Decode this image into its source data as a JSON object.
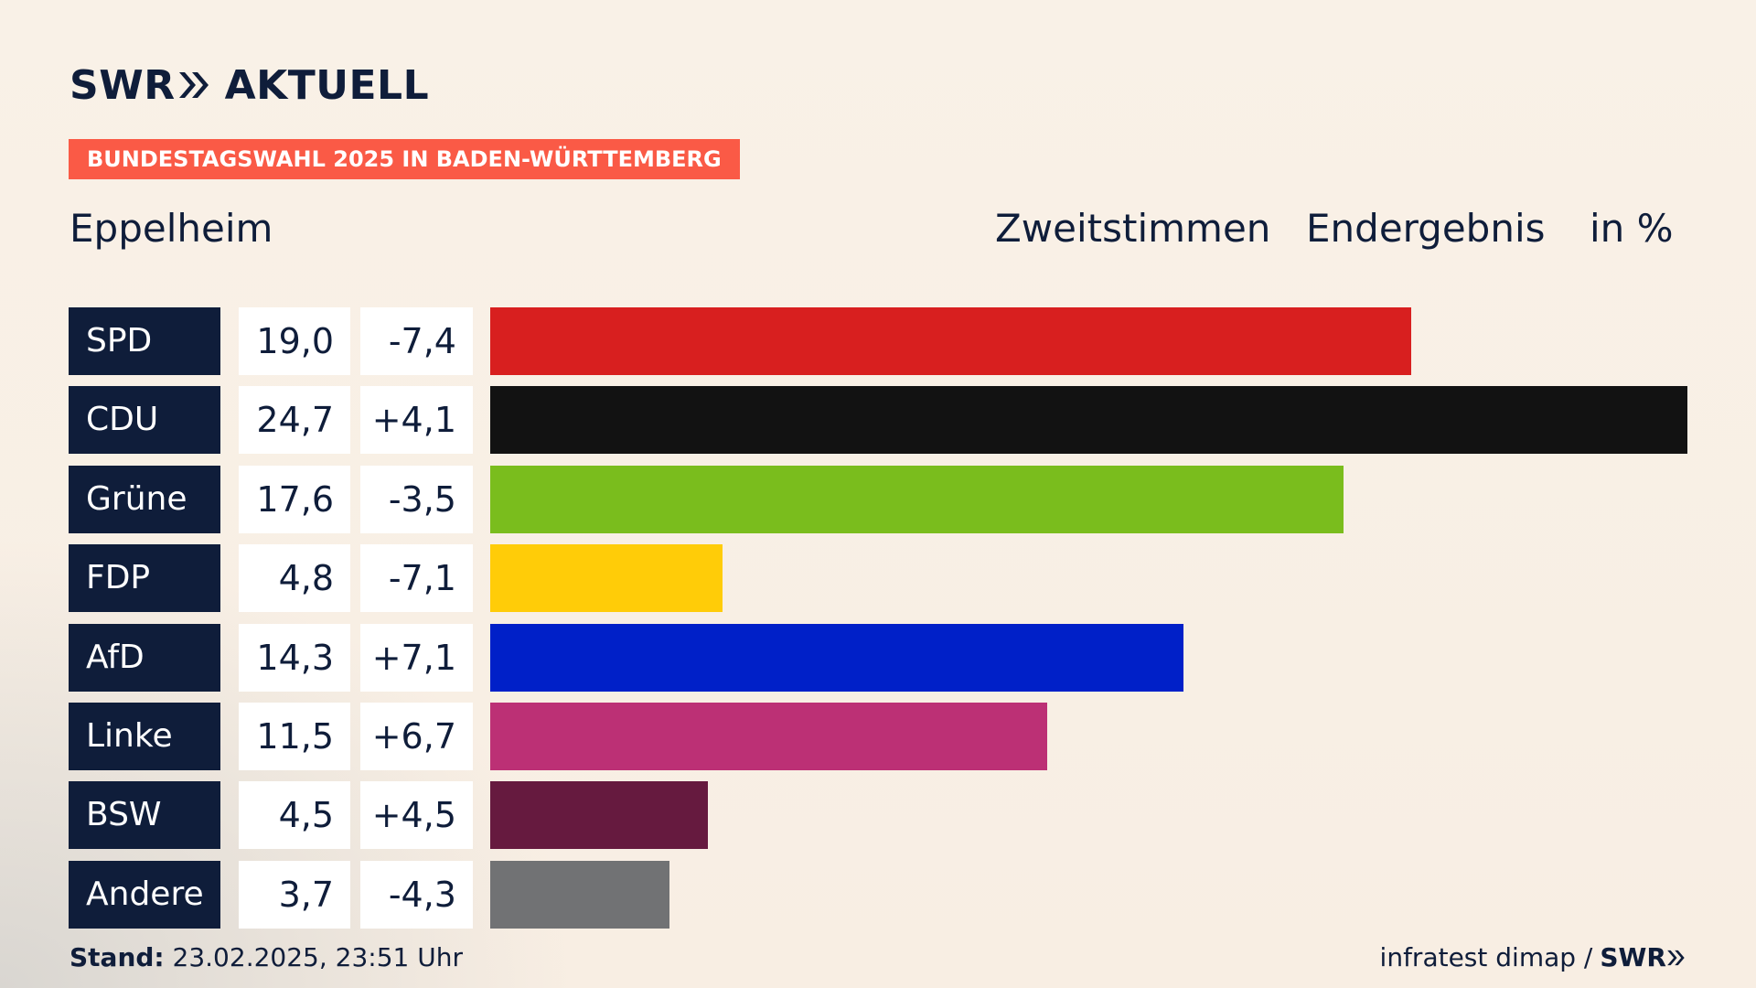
{
  "brand": {
    "logo_text": "SWR",
    "logo_suffix": "AKTUELL",
    "badge": "BUNDESTAGSWAHL 2025 IN BADEN-WÜRTTEMBERG",
    "badge_color": "#fa5a46"
  },
  "header": {
    "region": "Eppelheim",
    "col1": "Zweitstimmen",
    "col2": "Endergebnis",
    "col3": "in %"
  },
  "chart_data": {
    "type": "bar",
    "orientation": "horizontal",
    "categories": [
      "SPD",
      "CDU",
      "Grüne",
      "FDP",
      "AfD",
      "Linke",
      "BSW",
      "Andere"
    ],
    "values": [
      19.0,
      24.7,
      17.6,
      4.8,
      14.3,
      11.5,
      4.5,
      3.7
    ],
    "value_labels": [
      "19,0",
      "24,7",
      "17,6",
      "4,8",
      "14,3",
      "11,5",
      "4,5",
      "3,7"
    ],
    "diff_labels": [
      "-7,4",
      "+4,1",
      "-3,5",
      "-7,1",
      "+7,1",
      "+6,7",
      "+4,5",
      "-4,3"
    ],
    "colors": [
      "#d81f1f",
      "#121212",
      "#7abd1d",
      "#ffcc08",
      "#0020c8",
      "#bc3075",
      "#661a3f",
      "#717274"
    ],
    "xlim": [
      0,
      24.7
    ]
  },
  "footer": {
    "stand_label": "Stand:",
    "stand_value": "23.02.2025, 23:51 Uhr",
    "source": "infratest dimap /",
    "source_brand": "SWR"
  }
}
